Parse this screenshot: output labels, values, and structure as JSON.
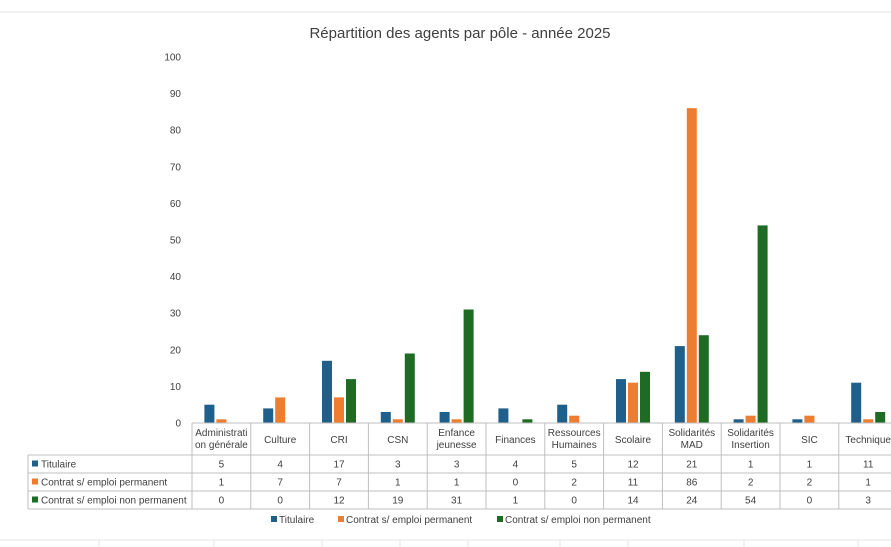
{
  "chart_data": {
    "type": "bar",
    "title": "Répartition des agents par pôle - année 2025",
    "categories": [
      [
        "Administrati",
        "on générale"
      ],
      [
        "Culture"
      ],
      [
        "CRI"
      ],
      [
        "CSN"
      ],
      [
        "Enfance",
        "jeunesse"
      ],
      [
        "Finances"
      ],
      [
        "Ressources",
        "Humaines"
      ],
      [
        "Scolaire"
      ],
      [
        "Solidarités",
        "MAD"
      ],
      [
        "Solidarités",
        "Insertion"
      ],
      [
        "SIC"
      ],
      [
        "Technique"
      ]
    ],
    "series": [
      {
        "name": "Titulaire",
        "color": "#1f5f8b",
        "values": [
          5,
          4,
          17,
          3,
          3,
          4,
          5,
          12,
          21,
          1,
          1,
          11
        ]
      },
      {
        "name": "Contrat s/ emploi permanent",
        "color": "#ed7d31",
        "values": [
          1,
          7,
          7,
          1,
          1,
          0,
          2,
          11,
          86,
          2,
          2,
          1
        ]
      },
      {
        "name": "Contrat s/ emploi non permanent",
        "color": "#1e6b24",
        "values": [
          0,
          0,
          12,
          19,
          31,
          1,
          0,
          14,
          24,
          54,
          0,
          3
        ]
      }
    ],
    "ylim": [
      0,
      100
    ],
    "yticks": [
      0,
      10,
      20,
      30,
      40,
      50,
      60,
      70,
      80,
      90,
      100
    ],
    "grid": false,
    "data_table": true,
    "legend": "bottom"
  }
}
